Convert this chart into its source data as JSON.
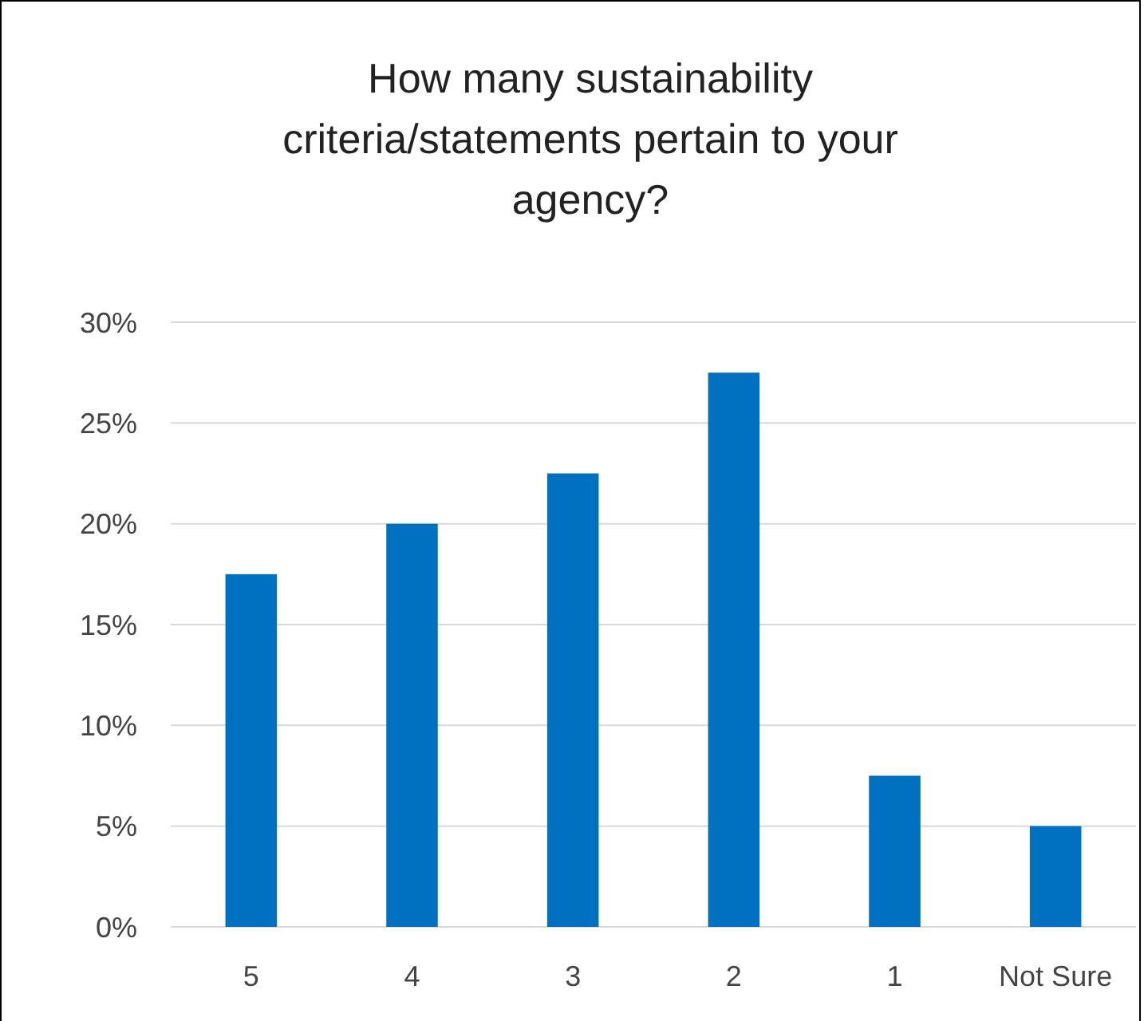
{
  "chart_data": {
    "type": "bar",
    "title": "How many sustainability criteria/statements pertain to your agency?",
    "categories": [
      "5",
      "4",
      "3",
      "2",
      "1",
      "Not Sure"
    ],
    "values": [
      17.5,
      20,
      22.5,
      27.5,
      7.5,
      5
    ],
    "color": "#0070c0",
    "ylim": [
      0,
      30
    ],
    "yticks": [
      {
        "value": 0,
        "label": "0%"
      },
      {
        "value": 5,
        "label": "5%"
      },
      {
        "value": 10,
        "label": "10%"
      },
      {
        "value": 15,
        "label": "15%"
      },
      {
        "value": 20,
        "label": "20%"
      },
      {
        "value": 25,
        "label": "25%"
      },
      {
        "value": 30,
        "label": "30%"
      }
    ],
    "grid": "y"
  }
}
